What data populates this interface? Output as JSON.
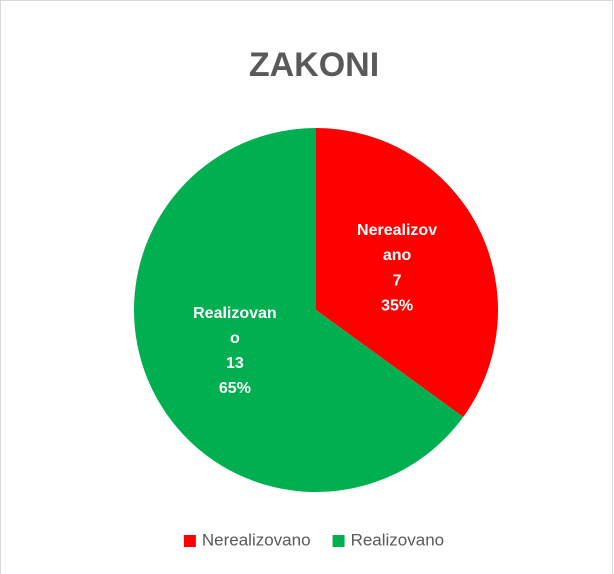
{
  "chart_data": {
    "type": "pie",
    "title": "ZAKONI",
    "categories": [
      "Nerealizovano",
      "Realizovano"
    ],
    "values": [
      7,
      13
    ],
    "percent_labels": [
      "35%",
      "65%"
    ],
    "colors": [
      "#ff0000",
      "#00b050"
    ],
    "legend": "bottom"
  }
}
